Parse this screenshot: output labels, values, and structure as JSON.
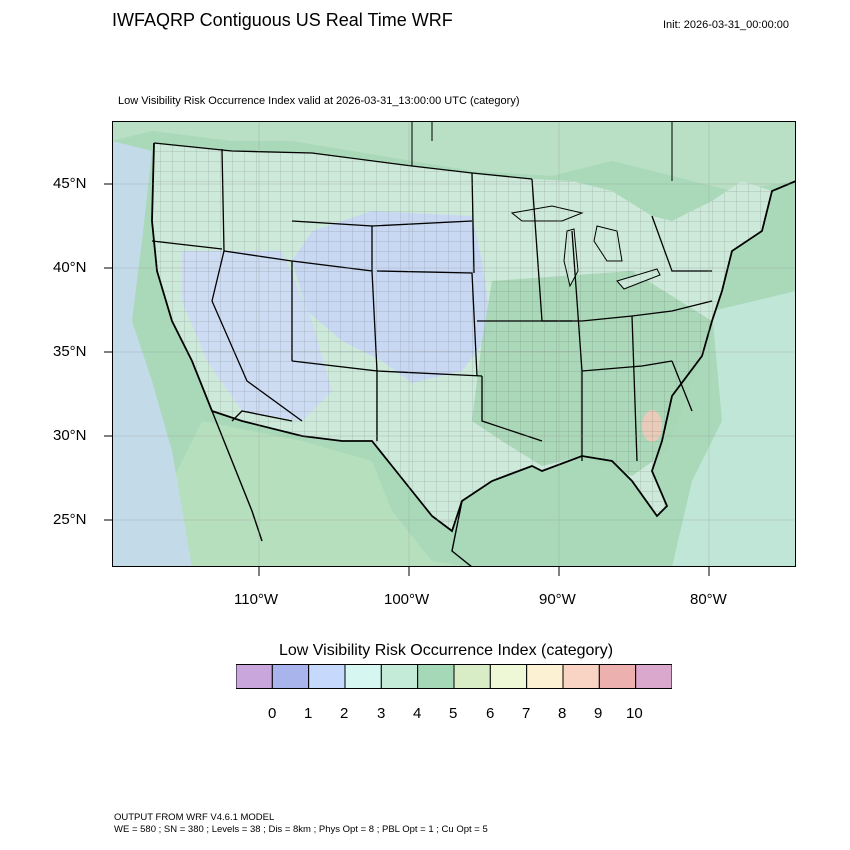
{
  "header": {
    "title": "IWFAQRP Contiguous US Real Time WRF",
    "init": "Init: 2026-03-31_00:00:00",
    "subtitle": "Low Visibility Risk Occurrence Index valid at 2026-03-31_13:00:00 UTC   (category)"
  },
  "map": {
    "lat_labels": [
      "45°N",
      "40°N",
      "35°N",
      "30°N",
      "25°N"
    ],
    "lon_labels": [
      "110°W",
      "100°W",
      "90°W",
      "80°W"
    ]
  },
  "colorbar": {
    "title": "Low Visibility Risk Occurrence Index  (category)",
    "labels": [
      "0",
      "1",
      "2",
      "3",
      "4",
      "5",
      "6",
      "7",
      "8",
      "9",
      "10"
    ],
    "colors": [
      "#c9a6dc",
      "#aab4ec",
      "#c6d8fb",
      "#d6f6f2",
      "#c4ead8",
      "#a5d8b6",
      "#d8edc6",
      "#eef7d6",
      "#fdf1d4",
      "#f9d3c4",
      "#ecb0ae",
      "#dba8cd"
    ]
  },
  "footer": {
    "line1": "OUTPUT FROM WRF V4.6.1 MODEL",
    "line2": "WE = 580 ; SN = 380 ; Levels = 38 ; Dis = 8km ; Phys Opt = 8 ; PBL Opt = 1 ; Cu Opt = 5"
  }
}
